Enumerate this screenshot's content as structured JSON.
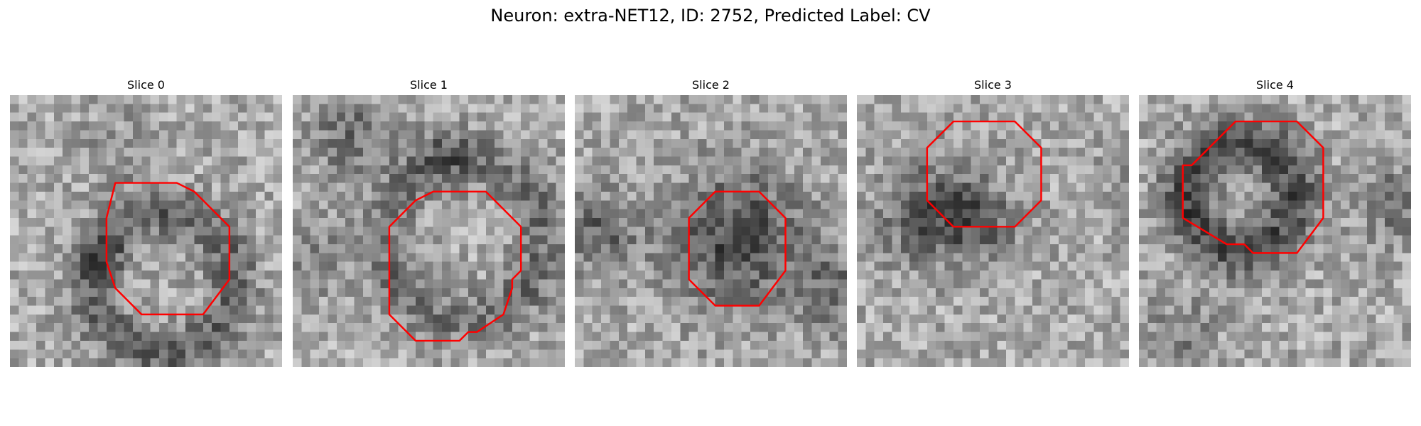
{
  "figure": {
    "title": "Neuron: extra-NET12, ID: 2752, Predicted Label: CV"
  },
  "panels": [
    {
      "title": "Slice 0",
      "image": "grayscale-microscopy-slice",
      "contour_color": "#ff0000",
      "contour": [
        [
          12,
          10
        ],
        [
          19,
          10
        ],
        [
          21,
          11
        ],
        [
          25,
          15
        ],
        [
          25,
          21
        ],
        [
          22,
          25
        ],
        [
          15,
          25
        ],
        [
          12,
          22
        ],
        [
          11,
          19
        ],
        [
          11,
          14
        ]
      ]
    },
    {
      "title": "Slice 1",
      "image": "grayscale-microscopy-slice",
      "contour_color": "#ff0000",
      "contour": [
        [
          16,
          11
        ],
        [
          22,
          11
        ],
        [
          26,
          15
        ],
        [
          26,
          20
        ],
        [
          25,
          21
        ],
        [
          25,
          22
        ],
        [
          24,
          25
        ],
        [
          21,
          27
        ],
        [
          20,
          27
        ],
        [
          19,
          28
        ],
        [
          14,
          28
        ],
        [
          11,
          25
        ],
        [
          11,
          15
        ],
        [
          13,
          13
        ],
        [
          14,
          12
        ]
      ]
    },
    {
      "title": "Slice 2",
      "image": "grayscale-microscopy-slice",
      "contour_color": "#ff0000",
      "contour": [
        [
          16,
          11
        ],
        [
          21,
          11
        ],
        [
          24,
          14
        ],
        [
          24,
          20
        ],
        [
          21,
          24
        ],
        [
          16,
          24
        ],
        [
          13,
          21
        ],
        [
          13,
          14
        ]
      ]
    },
    {
      "title": "Slice 3",
      "image": "grayscale-microscopy-slice",
      "contour_color": "#ff0000",
      "contour": [
        [
          11,
          3
        ],
        [
          18,
          3
        ],
        [
          21,
          6
        ],
        [
          21,
          12
        ],
        [
          18,
          15
        ],
        [
          11,
          15
        ],
        [
          8,
          12
        ],
        [
          8,
          6
        ]
      ]
    },
    {
      "title": "Slice 4",
      "image": "grayscale-microscopy-slice",
      "contour_color": "#ff0000",
      "contour": [
        [
          11,
          3
        ],
        [
          18,
          3
        ],
        [
          21,
          6
        ],
        [
          21,
          14
        ],
        [
          18,
          18
        ],
        [
          13,
          18
        ],
        [
          12,
          17
        ],
        [
          10,
          17
        ],
        [
          5,
          14
        ],
        [
          5,
          8
        ],
        [
          6,
          8
        ],
        [
          8,
          6
        ]
      ]
    }
  ]
}
